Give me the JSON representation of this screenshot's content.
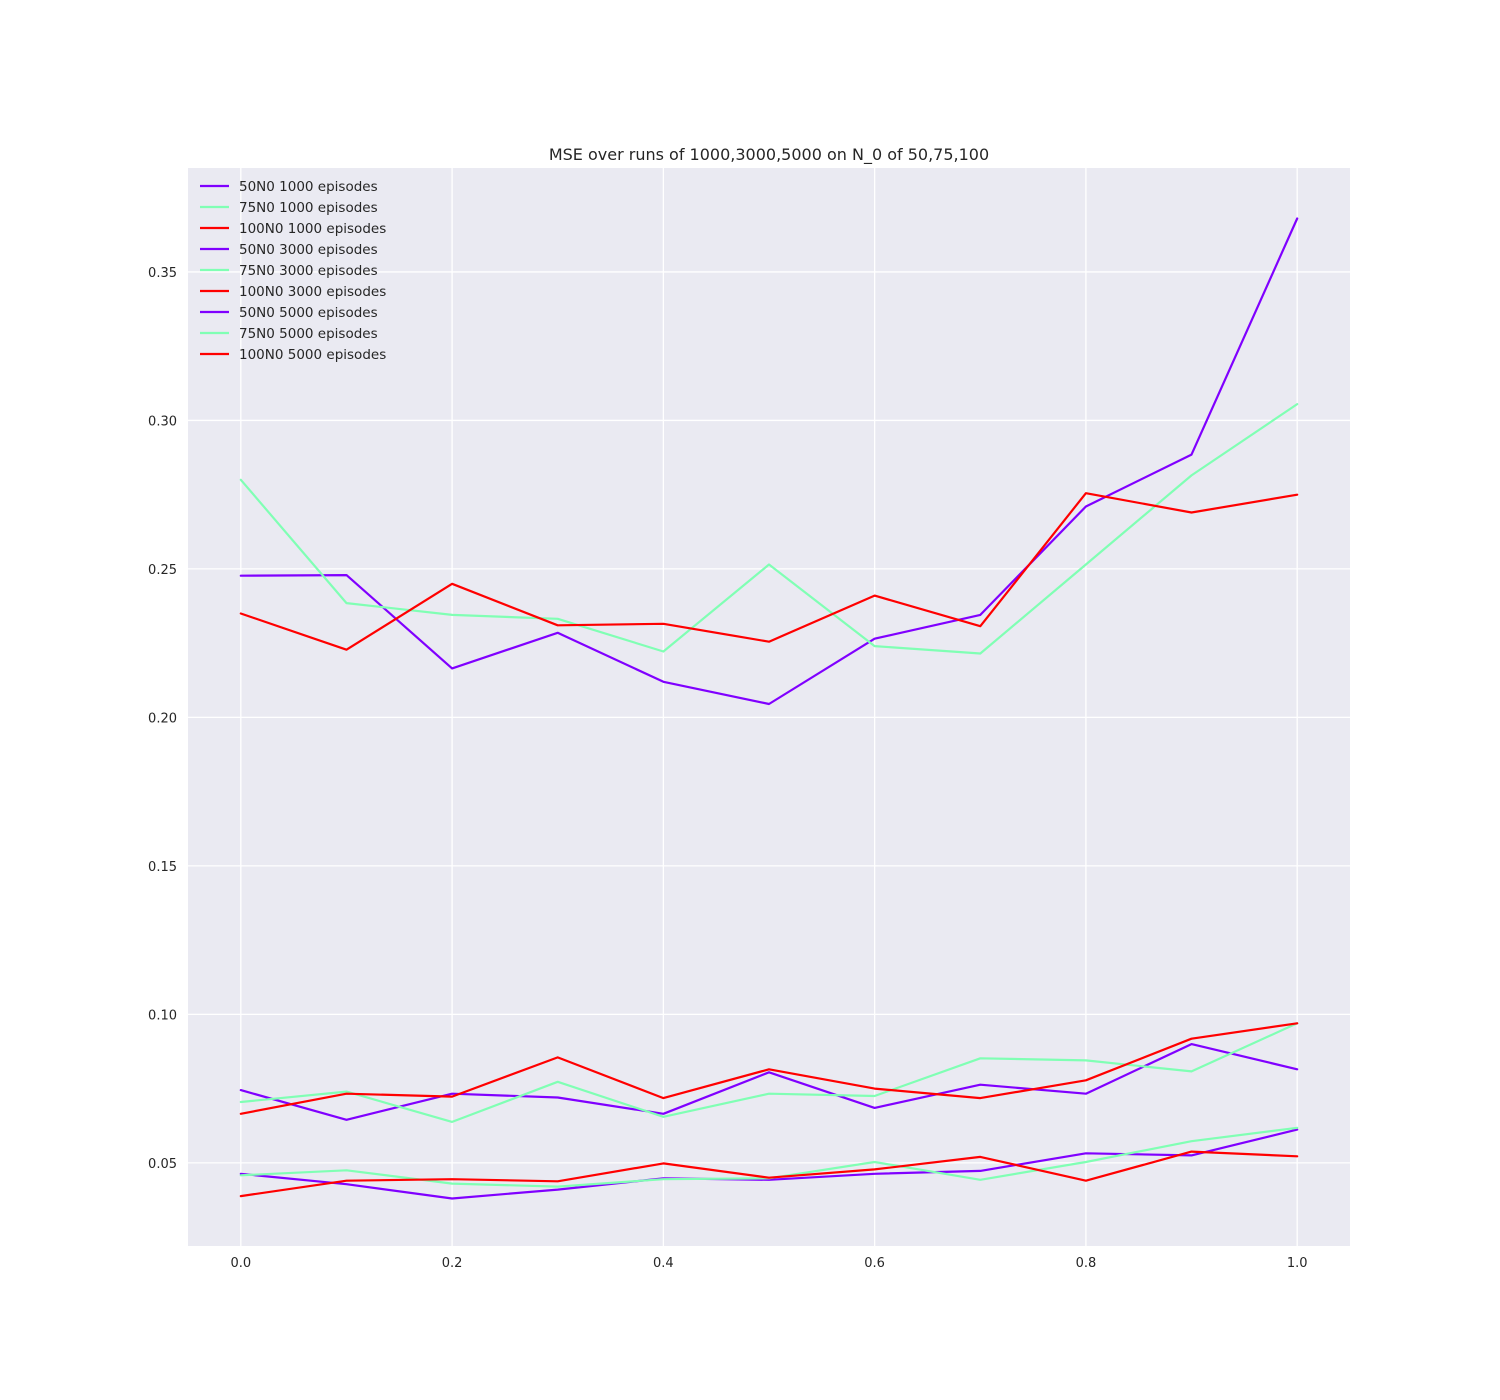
{
  "chart_data": {
    "type": "line",
    "title": "MSE over runs of 1000,3000,5000 on N_0 of 50,75,100",
    "xlabel": "",
    "ylabel": "",
    "xlim": [
      -0.05,
      1.05
    ],
    "ylim": [
      0.022,
      0.385
    ],
    "xticks": [
      0.0,
      0.2,
      0.4,
      0.6,
      0.8,
      1.0
    ],
    "xtick_labels": [
      "0.0",
      "0.2",
      "0.4",
      "0.6",
      "0.8",
      "1.0"
    ],
    "yticks": [
      0.05,
      0.1,
      0.15,
      0.2,
      0.25,
      0.3,
      0.35
    ],
    "ytick_labels": [
      "0.05",
      "0.10",
      "0.15",
      "0.20",
      "0.25",
      "0.30",
      "0.35"
    ],
    "grid": true,
    "background": "#eaeaf2",
    "legend_position": "top-left",
    "x": [
      0.0,
      0.1,
      0.2,
      0.3,
      0.4,
      0.5,
      0.6,
      0.7,
      0.8,
      0.9,
      1.0
    ],
    "series": [
      {
        "name": "50N0 1000 episodes",
        "color": "#8000ff",
        "values": [
          0.2477,
          0.2479,
          0.2165,
          0.2285,
          0.212,
          0.2045,
          0.2265,
          0.2345,
          0.271,
          0.2885,
          0.368
        ]
      },
      {
        "name": "75N0 1000 episodes",
        "color": "#80ffb4",
        "values": [
          0.28,
          0.2385,
          0.2345,
          0.2332,
          0.2222,
          0.2515,
          0.224,
          0.2215,
          0.2515,
          0.2815,
          0.3055
        ]
      },
      {
        "name": "100N0 1000 episodes",
        "color": "#ff0000",
        "values": [
          0.235,
          0.2228,
          0.245,
          0.231,
          0.2315,
          0.2255,
          0.241,
          0.2307,
          0.2755,
          0.269,
          0.275
        ]
      },
      {
        "name": "50N0 3000 episodes",
        "color": "#8000ff",
        "values": [
          0.0745,
          0.0645,
          0.0733,
          0.072,
          0.0665,
          0.0805,
          0.0685,
          0.0763,
          0.0733,
          0.09,
          0.0815
        ]
      },
      {
        "name": "75N0 3000 episodes",
        "color": "#80ffb4",
        "values": [
          0.0705,
          0.074,
          0.0638,
          0.0773,
          0.0655,
          0.0733,
          0.0725,
          0.0852,
          0.0845,
          0.0808,
          0.097
        ]
      },
      {
        "name": "100N0 3000 episodes",
        "color": "#ff0000",
        "values": [
          0.0665,
          0.0733,
          0.0723,
          0.0855,
          0.0718,
          0.0815,
          0.075,
          0.0718,
          0.0778,
          0.0918,
          0.097
        ]
      },
      {
        "name": "50N0 5000 episodes",
        "color": "#8000ff",
        "values": [
          0.0463,
          0.0428,
          0.038,
          0.041,
          0.0448,
          0.0443,
          0.0463,
          0.0473,
          0.0532,
          0.0525,
          0.0612
        ]
      },
      {
        "name": "75N0 5000 episodes",
        "color": "#80ffb4",
        "values": [
          0.0458,
          0.0475,
          0.043,
          0.042,
          0.0445,
          0.0448,
          0.0503,
          0.0443,
          0.0503,
          0.0573,
          0.0618
        ]
      },
      {
        "name": "100N0 5000 episodes",
        "color": "#ff0000",
        "values": [
          0.0388,
          0.044,
          0.0445,
          0.0438,
          0.0498,
          0.045,
          0.0478,
          0.052,
          0.044,
          0.0538,
          0.0522
        ]
      }
    ]
  }
}
